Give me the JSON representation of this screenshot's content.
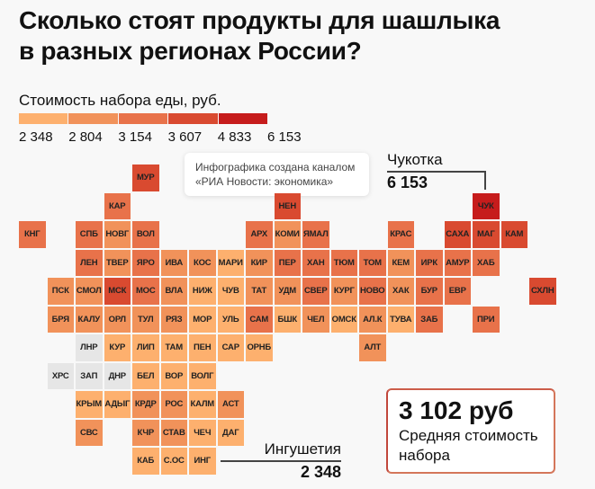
{
  "title_line1": "Сколько стоят продукты для шашлыка",
  "title_line2": "в разных регионах России?",
  "tooltip": {
    "line1": "Инфографика создана каналом",
    "line2": "«РИА Новости: экономика»"
  },
  "chart_data": {
    "type": "heatmap",
    "subtype": "tile-grid map",
    "title": "Стоимость набора еды, руб.",
    "legend": {
      "thresholds": [
        "2 348",
        "2 804",
        "3 154",
        "3 607",
        "4 833",
        "6 153"
      ],
      "colors": [
        "#fdb06e",
        "#f1925a",
        "#e8724a",
        "#d94a30",
        "#c61c1c"
      ],
      "no_data_color": "#e6e6e6"
    },
    "regions": [
      {
        "code": "МУР",
        "level": 4
      },
      {
        "code": "КАР",
        "level": 3
      },
      {
        "code": "НЕН",
        "level": 4
      },
      {
        "code": "ЧУК",
        "level": 5
      },
      {
        "code": "КНГ",
        "level": 3
      },
      {
        "code": "СПБ",
        "level": 3
      },
      {
        "code": "НОВГ",
        "level": 2
      },
      {
        "code": "ВОЛ",
        "level": 3
      },
      {
        "code": "АРХ",
        "level": 3
      },
      {
        "code": "КОМИ",
        "level": 2
      },
      {
        "code": "ЯМАЛ",
        "level": 3
      },
      {
        "code": "КРАС",
        "level": 3
      },
      {
        "code": "САХА",
        "level": 4
      },
      {
        "code": "МАГ",
        "level": 4
      },
      {
        "code": "КАМ",
        "level": 4
      },
      {
        "code": "ЛЕН",
        "level": 3
      },
      {
        "code": "ТВЕР",
        "level": 2
      },
      {
        "code": "ЯРО",
        "level": 3
      },
      {
        "code": "ИВА",
        "level": 2
      },
      {
        "code": "КОС",
        "level": 2
      },
      {
        "code": "МАРИ",
        "level": 1
      },
      {
        "code": "КИР",
        "level": 2
      },
      {
        "code": "ПЕР",
        "level": 3
      },
      {
        "code": "ХАН",
        "level": 3
      },
      {
        "code": "ТЮМ",
        "level": 3
      },
      {
        "code": "ТОМ",
        "level": 3
      },
      {
        "code": "КЕМ",
        "level": 2
      },
      {
        "code": "ИРК",
        "level": 3
      },
      {
        "code": "АМУР",
        "level": 3
      },
      {
        "code": "ХАБ",
        "level": 3
      },
      {
        "code": "ПСК",
        "level": 2
      },
      {
        "code": "СМОЛ",
        "level": 2
      },
      {
        "code": "МСК",
        "level": 4
      },
      {
        "code": "МОС",
        "level": 3
      },
      {
        "code": "ВЛА",
        "level": 2
      },
      {
        "code": "НИЖ",
        "level": 1
      },
      {
        "code": "ЧУВ",
        "level": 1
      },
      {
        "code": "ТАТ",
        "level": 2
      },
      {
        "code": "УДМ",
        "level": 2
      },
      {
        "code": "СВЕР",
        "level": 3
      },
      {
        "code": "КУРГ",
        "level": 2
      },
      {
        "code": "НОВО",
        "level": 3
      },
      {
        "code": "ХАК",
        "level": 2
      },
      {
        "code": "БУР",
        "level": 3
      },
      {
        "code": "ЕВР",
        "level": 3
      },
      {
        "code": "СХЛН",
        "level": 4
      },
      {
        "code": "БРЯ",
        "level": 2
      },
      {
        "code": "КАЛУ",
        "level": 2
      },
      {
        "code": "ОРЛ",
        "level": 2
      },
      {
        "code": "ТУЛ",
        "level": 2
      },
      {
        "code": "РЯЗ",
        "level": 2
      },
      {
        "code": "МОР",
        "level": 1
      },
      {
        "code": "УЛЬ",
        "level": 1
      },
      {
        "code": "САМ",
        "level": 3
      },
      {
        "code": "БШК",
        "level": 1
      },
      {
        "code": "ЧЕЛ",
        "level": 2
      },
      {
        "code": "ОМСК",
        "level": 1
      },
      {
        "code": "АЛ.К",
        "level": 2
      },
      {
        "code": "ТУВА",
        "level": 1
      },
      {
        "code": "ЗАБ",
        "level": 3
      },
      {
        "code": "ПРИ",
        "level": 3
      },
      {
        "code": "ЛНР",
        "level": 0
      },
      {
        "code": "КУР",
        "level": 1
      },
      {
        "code": "ЛИП",
        "level": 1
      },
      {
        "code": "ТАМ",
        "level": 1
      },
      {
        "code": "ПЕН",
        "level": 1
      },
      {
        "code": "САР",
        "level": 1
      },
      {
        "code": "ОРНБ",
        "level": 1
      },
      {
        "code": "АЛТ",
        "level": 2
      },
      {
        "code": "ХРС",
        "level": 0
      },
      {
        "code": "ЗАП",
        "level": 0
      },
      {
        "code": "ДНР",
        "level": 0
      },
      {
        "code": "БЕЛ",
        "level": 1
      },
      {
        "code": "ВОР",
        "level": 1
      },
      {
        "code": "ВОЛГ",
        "level": 1
      },
      {
        "code": "КРЫМ",
        "level": 1
      },
      {
        "code": "АДЫГ",
        "level": 1
      },
      {
        "code": "КРДР",
        "level": 2
      },
      {
        "code": "РОС",
        "level": 2
      },
      {
        "code": "КАЛМ",
        "level": 1
      },
      {
        "code": "АСТ",
        "level": 2
      },
      {
        "code": "СВС",
        "level": 2
      },
      {
        "code": "КЧР",
        "level": 2
      },
      {
        "code": "СТАВ",
        "level": 2
      },
      {
        "code": "ЧЕЧ",
        "level": 1
      },
      {
        "code": "ДАГ",
        "level": 1
      },
      {
        "code": "КАБ",
        "level": 1
      },
      {
        "code": "С.ОС",
        "level": 1
      },
      {
        "code": "ИНГ",
        "level": 1
      }
    ],
    "annotations": [
      {
        "name": "Чукотка",
        "value": "6 153"
      },
      {
        "name": "Ингушетия",
        "value": "2 348"
      }
    ]
  },
  "average": {
    "value": "3 102 руб",
    "label_line1": "Средняя стоимость",
    "label_line2": "набора"
  }
}
